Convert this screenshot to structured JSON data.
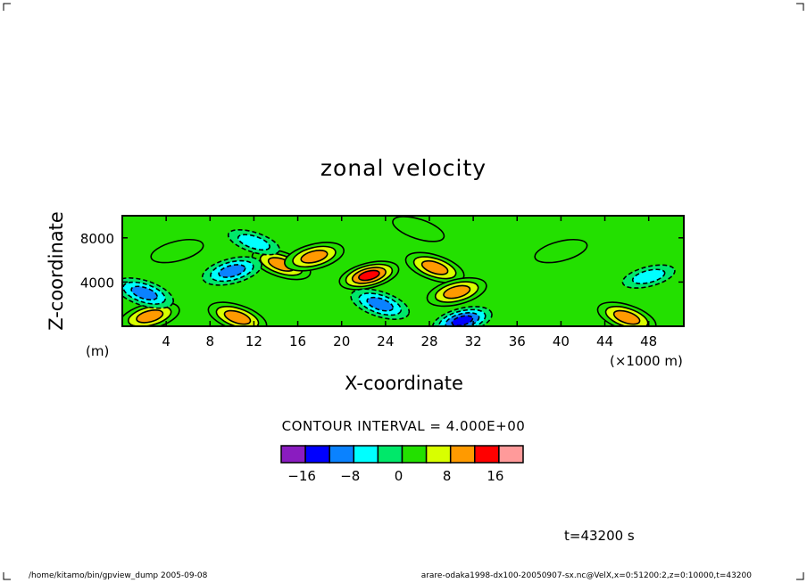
{
  "chart_data": {
    "type": "heatmap",
    "title": "zonal velocity",
    "xlabel": "X-coordinate",
    "ylabel": "Z-coordinate",
    "x_unit": "(×1000 m)",
    "y_unit": "(m)",
    "xlim": [
      0,
      51.2
    ],
    "ylim": [
      0,
      10000
    ],
    "x_ticks": [
      "4",
      "8",
      "12",
      "16",
      "20",
      "24",
      "28",
      "32",
      "36",
      "40",
      "44",
      "48"
    ],
    "x_tick_values": [
      4,
      8,
      12,
      16,
      20,
      24,
      28,
      32,
      36,
      40,
      44,
      48
    ],
    "y_ticks": [
      "4000",
      "8000"
    ],
    "y_tick_values": [
      4000,
      8000
    ],
    "contour_interval": "CONTOUR INTERVAL = 4.000E+00",
    "colorbar": {
      "levels": [
        -20,
        -16,
        -12,
        -8,
        -4,
        0,
        4,
        8,
        12,
        16,
        20
      ],
      "labels": [
        "−16",
        "−8",
        "0",
        "8",
        "16"
      ],
      "label_values": [
        -16,
        -8,
        0,
        8,
        16
      ],
      "colors": [
        "#8a1cc0",
        "#0000ff",
        "#0a82ff",
        "#00ffff",
        "#00e86a",
        "#23e000",
        "#d8ff00",
        "#ff9a00",
        "#ff0000",
        "#ff9a9a"
      ]
    },
    "features": [
      {
        "x": 22.5,
        "z": 4600,
        "value": 16
      },
      {
        "x": 14.5,
        "z": 5600,
        "value": 12
      },
      {
        "x": 17.5,
        "z": 6300,
        "value": 12
      },
      {
        "x": 28.5,
        "z": 5300,
        "value": 12
      },
      {
        "x": 30.5,
        "z": 3100,
        "value": 12
      },
      {
        "x": 10.5,
        "z": 800,
        "value": 12
      },
      {
        "x": 2.5,
        "z": 900,
        "value": 12
      },
      {
        "x": 46.0,
        "z": 800,
        "value": 12
      },
      {
        "x": 31.0,
        "z": 500,
        "value": -16
      },
      {
        "x": 23.5,
        "z": 2000,
        "value": -12
      },
      {
        "x": 10.0,
        "z": 5000,
        "value": -12
      },
      {
        "x": 2.0,
        "z": 3000,
        "value": -12
      },
      {
        "x": 48.0,
        "z": 4500,
        "value": -8
      },
      {
        "x": 12.0,
        "z": 7600,
        "value": -8
      },
      {
        "x": 5.0,
        "z": 6800,
        "value": 4
      },
      {
        "x": 27.0,
        "z": 8800,
        "value": 4
      },
      {
        "x": 40.0,
        "z": 6800,
        "value": 4
      }
    ]
  },
  "time_label": "t=43200 s",
  "footer": {
    "left": "/home/kitamo/bin/gpview_dump  2005-09-08",
    "right": "arare-odaka1998-dx100-20050907-sx.nc@VelX,x=0:51200:2,z=0:10000,t=43200"
  }
}
